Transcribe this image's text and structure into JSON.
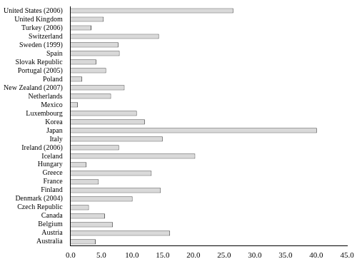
{
  "chart_data": {
    "type": "bar",
    "orientation": "horizontal",
    "categories": [
      "United States (2006)",
      "United Kingdom",
      "Turkey (2006)",
      "Switzerland",
      "Sweden (1999)",
      "Spain",
      "Slovak Republic",
      "Portugal (2005)",
      "Poland",
      "New Zealand (2007)",
      "Netherlands",
      "Mexico",
      "Luxembourg",
      "Korea",
      "Japan",
      "Italy",
      "Ireland (2006)",
      "Iceland",
      "Hungary",
      "Greece",
      "France",
      "Finland",
      "Denmark (2004)",
      "Czech Republic",
      "Canada",
      "Belgium",
      "Austria",
      "Australia"
    ],
    "values": [
      26.5,
      5.4,
      3.4,
      14.4,
      7.8,
      8.0,
      4.2,
      5.8,
      1.9,
      8.8,
      6.6,
      1.2,
      10.8,
      12.1,
      40.1,
      15.0,
      7.9,
      20.3,
      2.6,
      13.2,
      4.6,
      14.7,
      10.1,
      3.0,
      5.6,
      6.9,
      16.2,
      4.1
    ],
    "color": "#d9d9d9",
    "xlim": [
      0,
      45
    ],
    "xticks": [
      {
        "value": 0,
        "label": "0.0"
      },
      {
        "value": 5,
        "label": "5.0"
      },
      {
        "value": 10,
        "label": "10.0"
      },
      {
        "value": 15,
        "label": "15.0"
      },
      {
        "value": 20,
        "label": "20.0"
      },
      {
        "value": 25,
        "label": "25.0"
      },
      {
        "value": 30,
        "label": "30.0"
      },
      {
        "value": 35,
        "label": "35.0"
      },
      {
        "value": 40,
        "label": "40.0"
      },
      {
        "value": 45,
        "label": "45.0"
      }
    ],
    "grid": false
  }
}
